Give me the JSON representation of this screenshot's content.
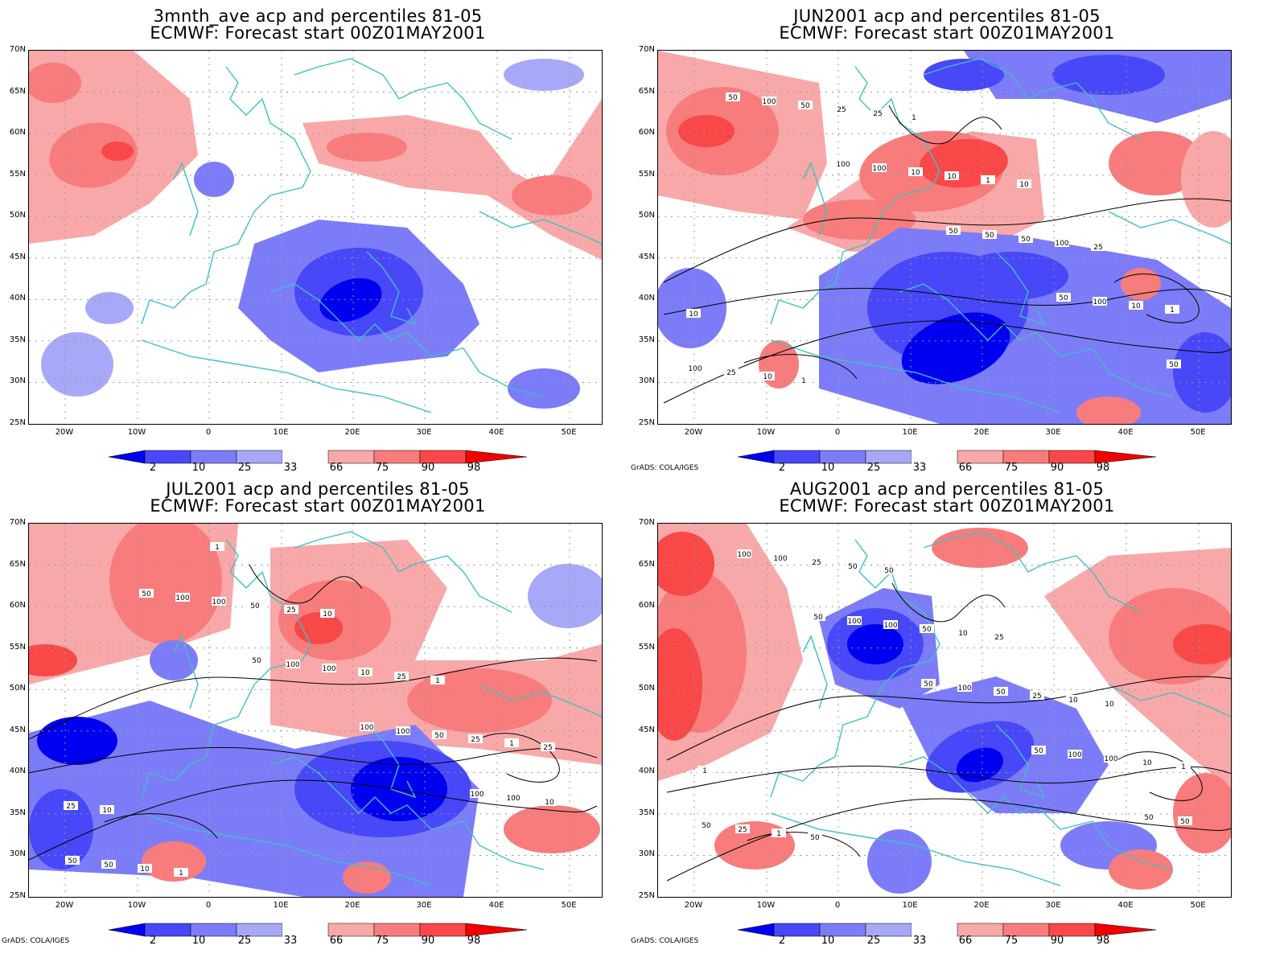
{
  "panels": [
    {
      "id": "p1",
      "title_line1": "3mnth_ave acp and percentiles 81-05",
      "title_line2": "ECMWF: Forecast start 00Z01MAY2001",
      "credit": "",
      "contours": false,
      "contour_labels": []
    },
    {
      "id": "p2",
      "title_line1": "JUN2001 acp and percentiles 81-05",
      "title_line2": "ECMWF: Forecast start 00Z01MAY2001",
      "credit": "GrADS: COLA/IGES",
      "contours": true,
      "contour_labels": [
        "50",
        "100",
        "50",
        "50",
        "50",
        "100",
        "100",
        "50",
        "100",
        "100",
        "50",
        "10",
        "50",
        "10",
        "25",
        "25",
        "10",
        "100",
        "1",
        "10",
        "25",
        "1",
        "25",
        "10",
        "1",
        "1",
        "10"
      ]
    },
    {
      "id": "p3",
      "title_line1": "JUL2001 acp and percentiles 81-05",
      "title_line2": "ECMWF: Forecast start 00Z01MAY2001",
      "credit": "GrADS: COLA/IGES",
      "contours": true,
      "contour_labels": [
        "50",
        "50",
        "100",
        "100",
        "50",
        "100",
        "100",
        "100",
        "100",
        "50",
        "100",
        "100",
        "50",
        "10",
        "10",
        "50",
        "10",
        "25",
        "25",
        "1",
        "25",
        "25",
        "1",
        "10",
        "1",
        "10",
        "1",
        "25"
      ]
    },
    {
      "id": "p4",
      "title_line1": "AUG2001 acp and percentiles 81-05",
      "title_line2": "ECMWF: Forecast start 00Z01MAY2001",
      "credit": "GrADS: COLA/IGES",
      "contours": true,
      "contour_labels": [
        "50",
        "50",
        "50",
        "50",
        "100",
        "100",
        "100",
        "100",
        "50",
        "100",
        "100",
        "50",
        "100",
        "50",
        "25",
        "50",
        "25",
        "10",
        "25",
        "50",
        "10",
        "10",
        "1",
        "1",
        "50",
        "25",
        "10",
        "1",
        "50"
      ]
    }
  ],
  "axes": {
    "lat_labels": [
      "70N",
      "65N",
      "60N",
      "55N",
      "50N",
      "45N",
      "40N",
      "35N",
      "30N",
      "25N"
    ],
    "lon_labels": [
      "20W",
      "10W",
      "0",
      "10E",
      "20E",
      "30E",
      "40E",
      "50E"
    ]
  },
  "colorbar": {
    "labels": [
      "2",
      "10",
      "25",
      "33",
      "66",
      "75",
      "90",
      "98"
    ],
    "colors": [
      "#0000f0",
      "#4848f8",
      "#7c7cf8",
      "#a8a8f8",
      "#ffffff",
      "#f8a8a8",
      "#f87c7c",
      "#f84848",
      "#f00000"
    ]
  },
  "colors": {
    "coast": "#40c0c0",
    "contour": "#000000",
    "grid": "#999999"
  }
}
